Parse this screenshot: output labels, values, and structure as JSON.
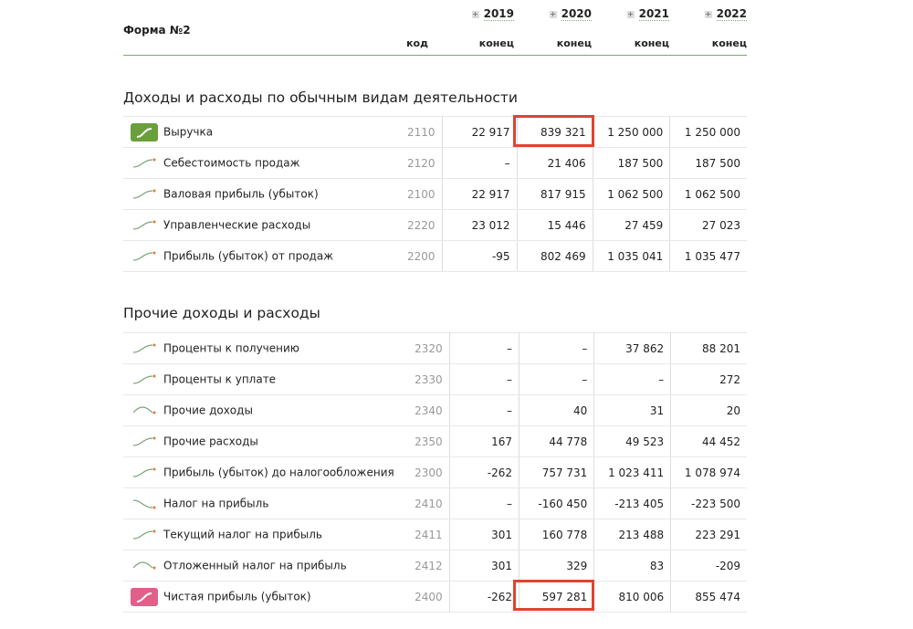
{
  "header": {
    "form_title": "Форма №2",
    "code_label": "код",
    "years": [
      {
        "year": "2019",
        "sub": "конец"
      },
      {
        "year": "2020",
        "sub": "конец"
      },
      {
        "year": "2021",
        "sub": "конец"
      },
      {
        "year": "2022",
        "sub": "конец"
      }
    ]
  },
  "sections": [
    {
      "title": "Доходы и расходы по обычным видам деятельности",
      "rows": [
        {
          "name": "Выручка",
          "code": "2110",
          "values": [
            "22 917",
            "839 321",
            "1 250 000",
            "1 250 000"
          ],
          "icon": "badge",
          "color": "#6aa03a",
          "trend": "up"
        },
        {
          "name": "Себестоимость продаж",
          "code": "2120",
          "values": [
            "–",
            "21 406",
            "187 500",
            "187 500"
          ],
          "trend": "up"
        },
        {
          "name": "Валовая прибыль (убыток)",
          "code": "2100",
          "values": [
            "22 917",
            "817 915",
            "1 062 500",
            "1 062 500"
          ],
          "trend": "up"
        },
        {
          "name": "Управленческие расходы",
          "code": "2220",
          "values": [
            "23 012",
            "15 446",
            "27 459",
            "27 023"
          ],
          "trend": "up"
        },
        {
          "name": "Прибыль (убыток) от продаж",
          "code": "2200",
          "values": [
            "-95",
            "802 469",
            "1 035 041",
            "1 035 477"
          ],
          "trend": "up"
        }
      ]
    },
    {
      "title": "Прочие доходы и расходы",
      "rows": [
        {
          "name": "Проценты к получению",
          "code": "2320",
          "values": [
            "–",
            "–",
            "37 862",
            "88 201"
          ],
          "trend": "up"
        },
        {
          "name": "Проценты к уплате",
          "code": "2330",
          "values": [
            "–",
            "–",
            "–",
            "272"
          ],
          "trend": "up"
        },
        {
          "name": "Прочие доходы",
          "code": "2340",
          "values": [
            "–",
            "40",
            "31",
            "20"
          ],
          "trend": "hump"
        },
        {
          "name": "Прочие расходы",
          "code": "2350",
          "values": [
            "167",
            "44 778",
            "49 523",
            "44 452"
          ],
          "trend": "up"
        },
        {
          "name": "Прибыль (убыток) до налогообложения",
          "code": "2300",
          "values": [
            "-262",
            "757 731",
            "1 023 411",
            "1 078 974"
          ],
          "trend": "up"
        },
        {
          "name": "Налог на прибыль",
          "code": "2410",
          "values": [
            "–",
            "-160 450",
            "-213 405",
            "-223 500"
          ],
          "trend": "down"
        },
        {
          "name": "Текущий налог на прибыль",
          "code": "2411",
          "values": [
            "301",
            "160 778",
            "213 488",
            "223 291"
          ],
          "trend": "up"
        },
        {
          "name": "Отложенный налог на прибыль",
          "code": "2412",
          "values": [
            "301",
            "329",
            "83",
            "-209"
          ],
          "trend": "hump"
        },
        {
          "name": "Чистая прибыль (убыток)",
          "code": "2400",
          "values": [
            "-262",
            "597 281",
            "810 006",
            "855 474"
          ],
          "icon": "badge",
          "color": "#e0608a",
          "trend": "up"
        }
      ]
    }
  ],
  "highlight_color": "#e0432e"
}
